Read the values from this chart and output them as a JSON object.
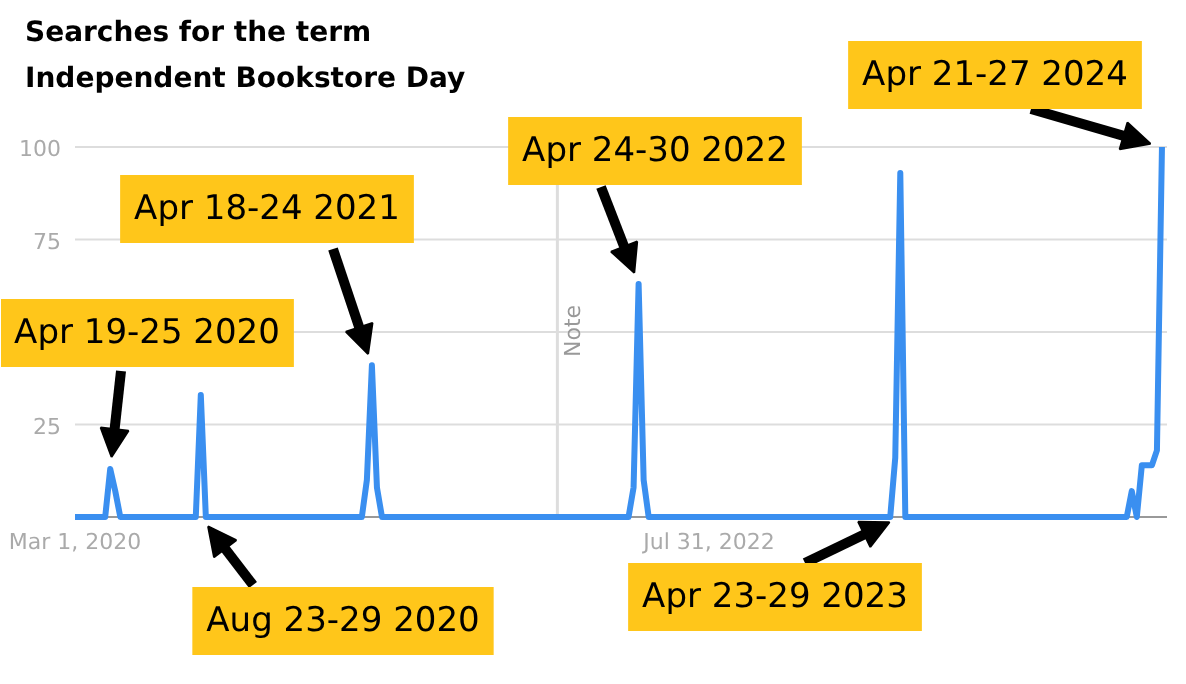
{
  "chart_data": {
    "type": "line",
    "title": "Searches for the term\nIndependent Bookstore Day",
    "x": [
      "2020-03-01",
      "2020-04-12",
      "2020-04-19",
      "2020-04-26",
      "2020-05-03",
      "2020-08-16",
      "2020-08-23",
      "2020-08-30",
      "2021-04-04",
      "2021-04-11",
      "2021-04-18",
      "2021-04-25",
      "2021-05-02",
      "2022-04-10",
      "2022-04-17",
      "2022-04-24",
      "2022-05-01",
      "2022-05-08",
      "2023-04-09",
      "2023-04-16",
      "2023-04-23",
      "2023-04-30",
      "2024-03-03",
      "2024-03-10",
      "2024-03-17",
      "2024-03-24",
      "2024-03-31",
      "2024-04-07",
      "2024-04-14",
      "2024-04-21"
    ],
    "series": [
      {
        "color": "#3a8ff0",
        "values": [
          0,
          0,
          13,
          7,
          0,
          0,
          33,
          0,
          0,
          10,
          41,
          8,
          0,
          0,
          8,
          63,
          10,
          0,
          0,
          16,
          93,
          0,
          0,
          7,
          0,
          14,
          14,
          14,
          18,
          100
        ]
      }
    ],
    "xlim": [
      "2020-03-01",
      "2024-04-28"
    ],
    "xticks": [
      {
        "value": "2020-03-01",
        "label": "Mar 1, 2020"
      },
      {
        "value": "2022-07-31",
        "label": "Jul 31, 2022"
      }
    ],
    "ylim": [
      0,
      100
    ],
    "yticks": [
      25,
      {
        "value": 50,
        "label": null
      },
      75,
      100
    ],
    "grid": "y",
    "marker": "none",
    "line_style": "solid",
    "ref_lines": [
      {
        "axis": "x",
        "value": "2022-01-01",
        "label": "Note",
        "color": "#dddddd"
      }
    ],
    "annotations": [
      {
        "text": "Apr 19-25 2020",
        "x": "2020-04-19",
        "y": 13
      },
      {
        "text": "Apr 18-24 2021",
        "x": "2021-04-18",
        "y": 41
      },
      {
        "text": "Apr 24-30 2022",
        "x": "2022-04-24",
        "y": 63
      },
      {
        "text": "Apr 21-27 2024",
        "x": "2024-04-21",
        "y": 100
      },
      {
        "text": "Aug 23-29 2020",
        "x": "2020-08-23",
        "y": 0
      },
      {
        "text": "Apr 23-29 2023",
        "x": "2023-04-23",
        "y": 0
      }
    ]
  }
}
